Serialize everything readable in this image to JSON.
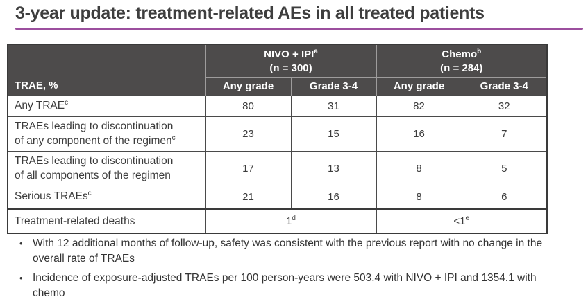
{
  "title": "3-year update: treatment-related AEs in all treated patients",
  "bullet_char": "•",
  "colors": {
    "accent_underline": "#9c4f9e",
    "header_bg": "#4d4b4b",
    "header_text": "#ffffff",
    "table_border": "#3a3a3a",
    "body_text": "#3c3c3c"
  },
  "table": {
    "row_header_label": "TRAE, %",
    "groups": [
      {
        "name": "NIVO + IPI",
        "superscript": "a",
        "n_label": "(n = 300)"
      },
      {
        "name": "Chemo",
        "superscript": "b",
        "n_label": "(n = 284)"
      }
    ],
    "subheaders": [
      "Any grade",
      "Grade 3-4",
      "Any grade",
      "Grade 3-4"
    ],
    "rows": [
      {
        "label": "Any TRAE",
        "label_superscript": "c",
        "values": [
          "80",
          "31",
          "82",
          "32"
        ]
      },
      {
        "label": "TRAEs leading to discontinuation of any component of the regimen",
        "label_superscript": "c",
        "values": [
          "23",
          "15",
          "16",
          "7"
        ]
      },
      {
        "label": "TRAEs leading to discontinuation of all components of the regimen",
        "label_superscript": "",
        "values": [
          "17",
          "13",
          "8",
          "5"
        ]
      },
      {
        "label": "Serious TRAEs",
        "label_superscript": "c",
        "values": [
          "21",
          "16",
          "8",
          "6"
        ]
      }
    ],
    "deaths_row": {
      "label": "Treatment-related deaths",
      "nivo_value": "1",
      "nivo_superscript": "d",
      "chemo_value": "<1",
      "chemo_superscript": "e"
    }
  },
  "footnotes": [
    "With 12 additional months of follow-up, safety was consistent with the previous report with no change in the overall rate of TRAEs",
    "Incidence of exposure-adjusted TRAEs per 100 person-years were 503.4 with NIVO + IPI and 1354.1 with chemo"
  ]
}
